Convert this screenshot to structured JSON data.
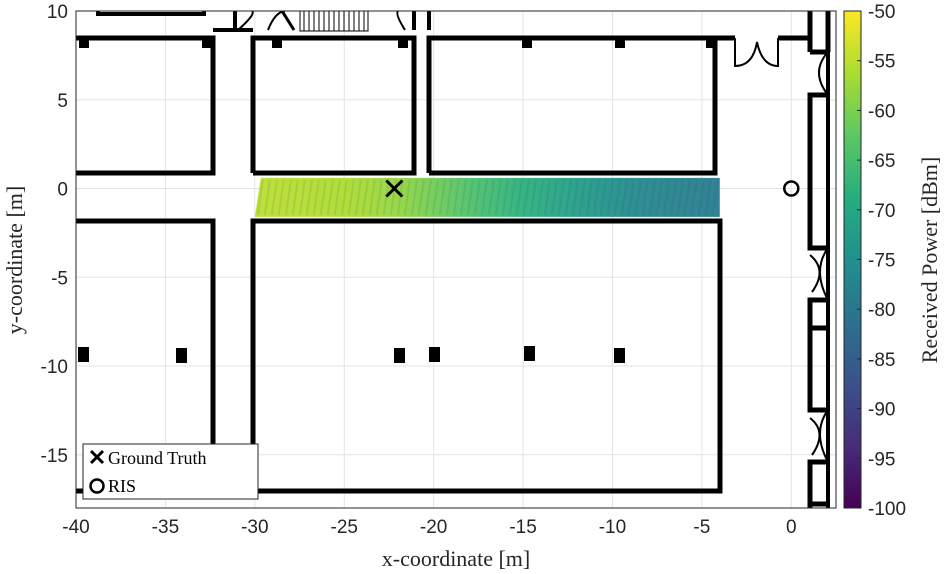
{
  "chart_data": {
    "type": "heatmap",
    "title": "",
    "xlabel": "x-coordinate [m]",
    "ylabel": "y-coordinate [m]",
    "xlim": [
      -40,
      2.5
    ],
    "ylim": [
      -18,
      10
    ],
    "xticks": [
      -40,
      -35,
      -30,
      -25,
      -20,
      -15,
      -10,
      -5,
      0
    ],
    "yticks": [
      -15,
      -10,
      -5,
      0,
      5,
      10
    ],
    "xtick_labels": [
      "-40",
      "-35",
      "-30",
      "-25",
      "-20",
      "-15",
      "-10",
      "-5",
      "0"
    ],
    "ytick_labels": [
      "-15",
      "-10",
      "-5",
      "0",
      "5",
      "10"
    ],
    "grid": true,
    "colorbar": {
      "label": "Received Power [dBm]",
      "colormap": "viridis",
      "range": [
        -100,
        -50
      ],
      "ticks": [
        -50,
        -55,
        -60,
        -65,
        -70,
        -75,
        -80,
        -85,
        -90,
        -95,
        -100
      ],
      "tick_labels": [
        "-50",
        "-55",
        "-60",
        "-65",
        "-70",
        "-75",
        "-80",
        "-85",
        "-90",
        "-95",
        "-100"
      ]
    },
    "heatmap_region": {
      "x_range": [
        -30,
        -4
      ],
      "y_range": [
        -1.6,
        0.6
      ]
    },
    "heatmap_trend": {
      "x": [
        -30,
        -25,
        -22,
        -18,
        -15,
        -12,
        -9,
        -6,
        -4
      ],
      "received_power_dbm": [
        -55,
        -56,
        -58,
        -64,
        -68,
        -72,
        -76,
        -78,
        -79
      ]
    },
    "markers": [
      {
        "name": "Ground Truth",
        "symbol": "x",
        "x": -22.2,
        "y": 0
      },
      {
        "name": "RIS",
        "symbol": "o",
        "x": 0,
        "y": 0
      }
    ],
    "legend": {
      "position": "bottom-left",
      "entries": [
        {
          "symbol": "x",
          "label": "Ground Truth"
        },
        {
          "symbol": "o",
          "label": "RIS"
        }
      ]
    }
  }
}
